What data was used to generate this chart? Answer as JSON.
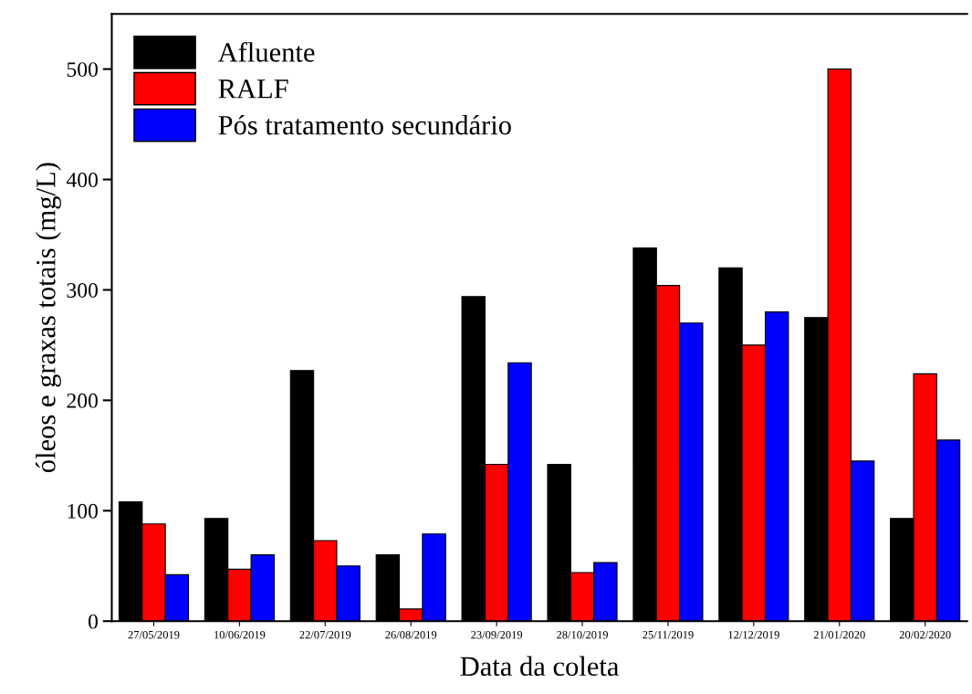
{
  "chart_data": {
    "type": "bar",
    "xlabel": "Data da coleta",
    "ylabel": "óleos e graxas totais (mg/L)",
    "categories": [
      "27/05/2019",
      "10/06/2019",
      "22/07/2019",
      "26/08/2019",
      "23/09/2019",
      "28/10/2019",
      "25/11/2019",
      "12/12/2019",
      "21/01/2020",
      "20/02/2020"
    ],
    "series": [
      {
        "name": "Afluente",
        "color": "#000000",
        "values": [
          108,
          93,
          227,
          60,
          294,
          142,
          338,
          320,
          275,
          93
        ]
      },
      {
        "name": "RALF",
        "color": "#ff0000",
        "values": [
          88,
          47,
          73,
          11,
          142,
          44,
          304,
          250,
          500,
          224
        ]
      },
      {
        "name": "Pós tratamento secundário",
        "color": "#0000ff",
        "values": [
          42,
          60,
          50,
          79,
          234,
          53,
          270,
          280,
          145,
          164
        ]
      }
    ],
    "ylim": [
      0,
      550
    ],
    "yticks": [
      0,
      100,
      200,
      300,
      400,
      500
    ],
    "grid": false,
    "legend": "top left"
  }
}
